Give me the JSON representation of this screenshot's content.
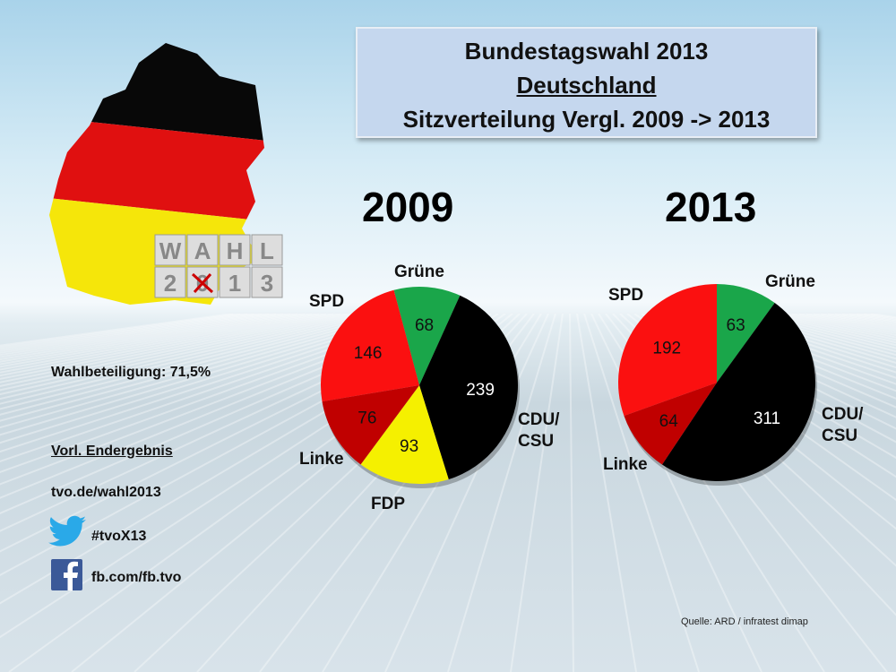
{
  "title": {
    "line1": "Bundestagswahl 2013",
    "line2": "Deutschland",
    "line3": "Sitzverteilung Vergl. 2009 -> 2013"
  },
  "logo": {
    "word": "WAHL",
    "year": "2013"
  },
  "side": {
    "turnout": "Wahlbeteiligung: 71,5%",
    "prelim": "Vorl. Endergebnis",
    "website": "tvo.de/wahl2013",
    "twitter": "#tvoX13",
    "facebook": "fb.com/fb.tvo"
  },
  "source": "Quelle: ARD / infratest dimap",
  "colors": {
    "Grüne": "#1aa64a",
    "CDU/CSU": "#000000",
    "FDP": "#f5f000",
    "Linke": "#c00000",
    "SPD": "#fb1010"
  },
  "chart_data": [
    {
      "type": "pie",
      "title": "2009",
      "categories": [
        "Grüne",
        "CDU/CSU",
        "FDP",
        "Linke",
        "SPD"
      ],
      "values": [
        68,
        239,
        93,
        76,
        146
      ],
      "labels": {
        "Grüne": "Grüne",
        "CDU/CSU": "CDU/\nCSU",
        "FDP": "FDP",
        "Linke": "Linke",
        "SPD": "SPD"
      }
    },
    {
      "type": "pie",
      "title": "2013",
      "categories": [
        "Grüne",
        "CDU/CSU",
        "Linke",
        "SPD"
      ],
      "values": [
        63,
        311,
        64,
        192
      ],
      "labels": {
        "Grüne": "Grüne",
        "CDU/CSU": "CDU/\nCSU",
        "Linke": "Linke",
        "SPD": "SPD"
      }
    }
  ]
}
